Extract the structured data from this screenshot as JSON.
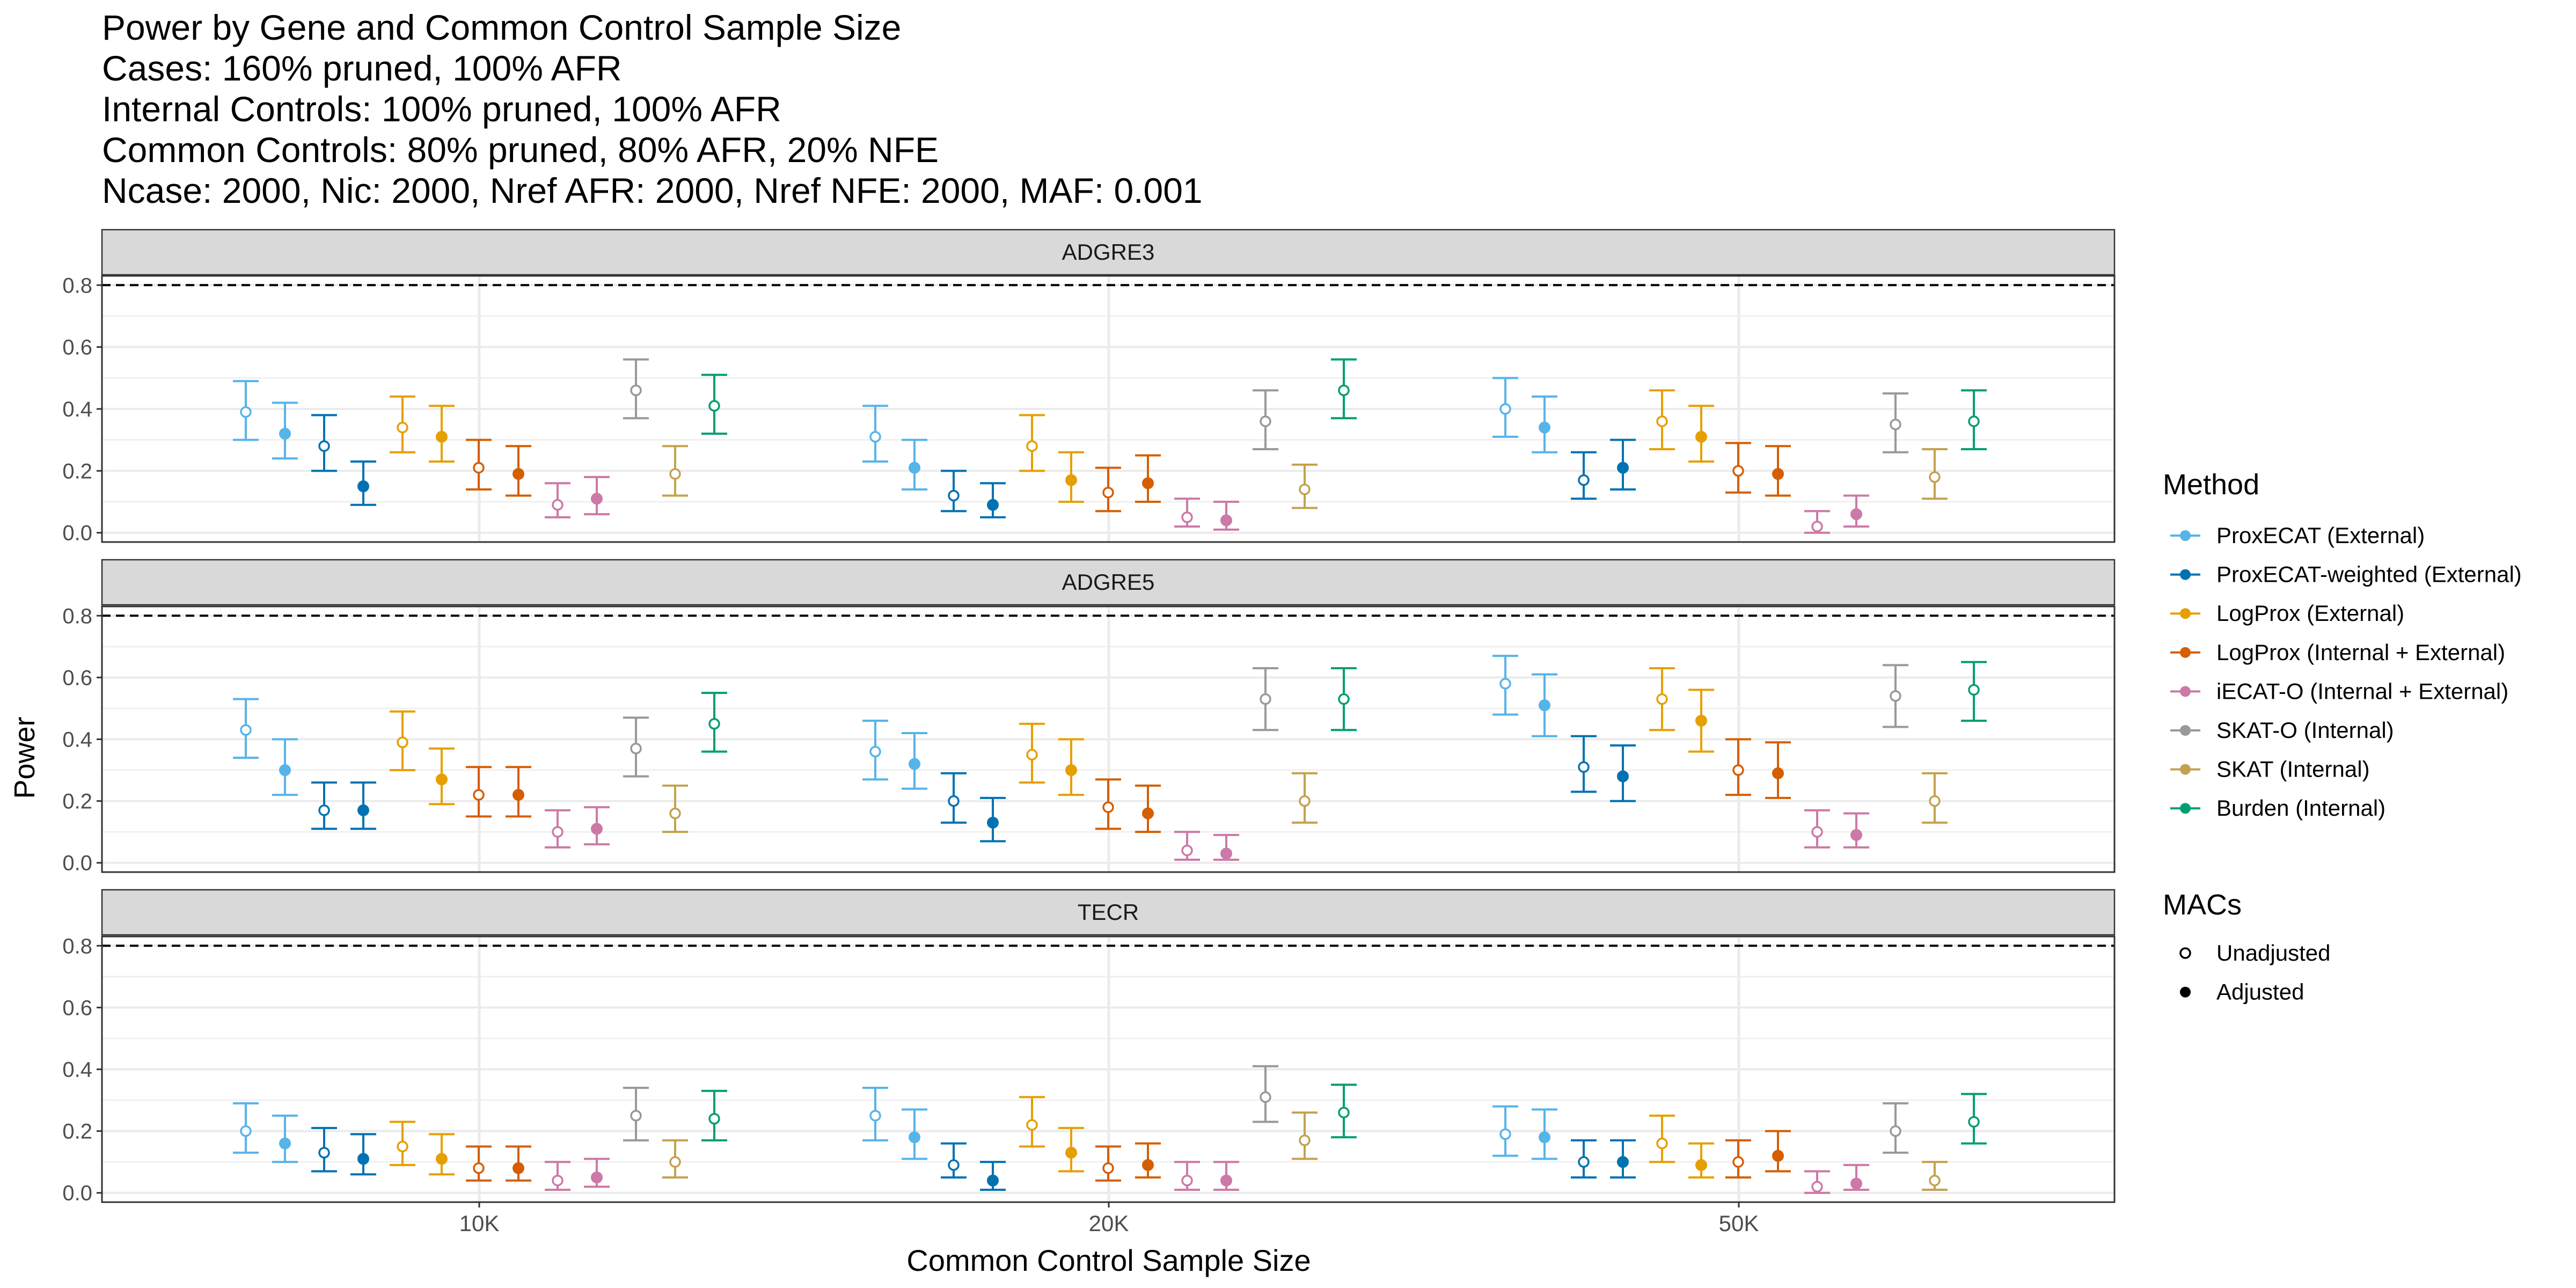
{
  "title_lines": [
    "Power by Gene and Common Control Sample Size",
    "Cases: 160% pruned, 100% AFR",
    "Internal Controls: 100% pruned, 100% AFR",
    "Common Controls: 80% pruned, 80% AFR, 20% NFE",
    "Ncase: 2000, Nic: 2000, Nref AFR: 2000, Nref NFE: 2000, MAF: 0.001"
  ],
  "chart_data": {
    "type": "scatter",
    "subtype": "dot-with-error-bars, faceted",
    "xlabel": "Common Control Sample Size",
    "ylabel": "Power",
    "ylim": [
      -0.03,
      0.83
    ],
    "y_ticks": [
      "0.0",
      "0.2",
      "0.4",
      "0.6",
      "0.8"
    ],
    "categories": [
      "10K",
      "20K",
      "50K"
    ],
    "reference_line": {
      "y": 0.8,
      "style": "dashed"
    },
    "grid": true,
    "legend_placement": "right",
    "legend_method_title": "Method",
    "legend_macs_title": "MACs",
    "methods": [
      {
        "name": "ProxECAT (External)",
        "color": "#56B4E9"
      },
      {
        "name": "ProxECAT-weighted (External)",
        "color": "#0072B2"
      },
      {
        "name": "LogProx (External)",
        "color": "#E69F00"
      },
      {
        "name": "LogProx (Internal + External)",
        "color": "#D55E00"
      },
      {
        "name": "iECAT-O (Internal + External)",
        "color": "#CC79A7"
      },
      {
        "name": "SKAT-O (Internal)",
        "color": "#999999"
      },
      {
        "name": "SKAT (Internal)",
        "color": "#C3A24F"
      },
      {
        "name": "Burden (Internal)",
        "color": "#009E73"
      }
    ],
    "macs": [
      {
        "name": "Unadjusted",
        "shape": "open-circle"
      },
      {
        "name": "Adjusted",
        "shape": "filled-circle"
      }
    ],
    "series_order": [
      {
        "method": 0,
        "mac": 0
      },
      {
        "method": 0,
        "mac": 1
      },
      {
        "method": 1,
        "mac": 0
      },
      {
        "method": 1,
        "mac": 1
      },
      {
        "method": 2,
        "mac": 0
      },
      {
        "method": 2,
        "mac": 1
      },
      {
        "method": 3,
        "mac": 0
      },
      {
        "method": 3,
        "mac": 1
      },
      {
        "method": 4,
        "mac": 0
      },
      {
        "method": 4,
        "mac": 1
      },
      {
        "method": 5,
        "mac": 0
      },
      {
        "method": 6,
        "mac": 0
      },
      {
        "method": 7,
        "mac": 0
      }
    ],
    "panels": [
      {
        "gene": "ADGRE3",
        "values": [
          [
            [
              0.39,
              0.3,
              0.49
            ],
            [
              0.32,
              0.24,
              0.42
            ],
            [
              0.28,
              0.2,
              0.38
            ],
            [
              0.15,
              0.09,
              0.23
            ],
            [
              0.34,
              0.26,
              0.44
            ],
            [
              0.31,
              0.23,
              0.41
            ],
            [
              0.21,
              0.14,
              0.3
            ],
            [
              0.19,
              0.12,
              0.28
            ],
            [
              0.09,
              0.05,
              0.16
            ],
            [
              0.11,
              0.06,
              0.18
            ],
            [
              0.46,
              0.37,
              0.56
            ],
            [
              0.19,
              0.12,
              0.28
            ],
            [
              0.41,
              0.32,
              0.51
            ]
          ],
          [
            [
              0.31,
              0.23,
              0.41
            ],
            [
              0.21,
              0.14,
              0.3
            ],
            [
              0.12,
              0.07,
              0.2
            ],
            [
              0.09,
              0.05,
              0.16
            ],
            [
              0.28,
              0.2,
              0.38
            ],
            [
              0.17,
              0.1,
              0.26
            ],
            [
              0.13,
              0.07,
              0.21
            ],
            [
              0.16,
              0.1,
              0.25
            ],
            [
              0.05,
              0.02,
              0.11
            ],
            [
              0.04,
              0.01,
              0.1
            ],
            [
              0.36,
              0.27,
              0.46
            ],
            [
              0.14,
              0.08,
              0.22
            ],
            [
              0.46,
              0.37,
              0.56
            ]
          ],
          [
            [
              0.4,
              0.31,
              0.5
            ],
            [
              0.34,
              0.26,
              0.44
            ],
            [
              0.17,
              0.11,
              0.26
            ],
            [
              0.21,
              0.14,
              0.3
            ],
            [
              0.36,
              0.27,
              0.46
            ],
            [
              0.31,
              0.23,
              0.41
            ],
            [
              0.2,
              0.13,
              0.29
            ],
            [
              0.19,
              0.12,
              0.28
            ],
            [
              0.02,
              0.0,
              0.07
            ],
            [
              0.06,
              0.02,
              0.12
            ],
            [
              0.35,
              0.26,
              0.45
            ],
            [
              0.18,
              0.11,
              0.27
            ],
            [
              0.36,
              0.27,
              0.46
            ]
          ]
        ]
      },
      {
        "gene": "ADGRE5",
        "values": [
          [
            [
              0.43,
              0.34,
              0.53
            ],
            [
              0.3,
              0.22,
              0.4
            ],
            [
              0.17,
              0.11,
              0.26
            ],
            [
              0.17,
              0.11,
              0.26
            ],
            [
              0.39,
              0.3,
              0.49
            ],
            [
              0.27,
              0.19,
              0.37
            ],
            [
              0.22,
              0.15,
              0.31
            ],
            [
              0.22,
              0.15,
              0.31
            ],
            [
              0.1,
              0.05,
              0.17
            ],
            [
              0.11,
              0.06,
              0.18
            ],
            [
              0.37,
              0.28,
              0.47
            ],
            [
              0.16,
              0.1,
              0.25
            ],
            [
              0.45,
              0.36,
              0.55
            ]
          ],
          [
            [
              0.36,
              0.27,
              0.46
            ],
            [
              0.32,
              0.24,
              0.42
            ],
            [
              0.2,
              0.13,
              0.29
            ],
            [
              0.13,
              0.07,
              0.21
            ],
            [
              0.35,
              0.26,
              0.45
            ],
            [
              0.3,
              0.22,
              0.4
            ],
            [
              0.18,
              0.11,
              0.27
            ],
            [
              0.16,
              0.1,
              0.25
            ],
            [
              0.04,
              0.01,
              0.1
            ],
            [
              0.03,
              0.01,
              0.09
            ],
            [
              0.53,
              0.43,
              0.63
            ],
            [
              0.2,
              0.13,
              0.29
            ],
            [
              0.53,
              0.43,
              0.63
            ]
          ],
          [
            [
              0.58,
              0.48,
              0.67
            ],
            [
              0.51,
              0.41,
              0.61
            ],
            [
              0.31,
              0.23,
              0.41
            ],
            [
              0.28,
              0.2,
              0.38
            ],
            [
              0.53,
              0.43,
              0.63
            ],
            [
              0.46,
              0.36,
              0.56
            ],
            [
              0.3,
              0.22,
              0.4
            ],
            [
              0.29,
              0.21,
              0.39
            ],
            [
              0.1,
              0.05,
              0.17
            ],
            [
              0.09,
              0.05,
              0.16
            ],
            [
              0.54,
              0.44,
              0.64
            ],
            [
              0.2,
              0.13,
              0.29
            ],
            [
              0.56,
              0.46,
              0.65
            ]
          ]
        ]
      },
      {
        "gene": "TECR",
        "values": [
          [
            [
              0.2,
              0.13,
              0.29
            ],
            [
              0.16,
              0.1,
              0.25
            ],
            [
              0.13,
              0.07,
              0.21
            ],
            [
              0.11,
              0.06,
              0.19
            ],
            [
              0.15,
              0.09,
              0.23
            ],
            [
              0.11,
              0.06,
              0.19
            ],
            [
              0.08,
              0.04,
              0.15
            ],
            [
              0.08,
              0.04,
              0.15
            ],
            [
              0.04,
              0.01,
              0.1
            ],
            [
              0.05,
              0.02,
              0.11
            ],
            [
              0.25,
              0.17,
              0.34
            ],
            [
              0.1,
              0.05,
              0.17
            ],
            [
              0.24,
              0.17,
              0.33
            ]
          ],
          [
            [
              0.25,
              0.17,
              0.34
            ],
            [
              0.18,
              0.11,
              0.27
            ],
            [
              0.09,
              0.05,
              0.16
            ],
            [
              0.04,
              0.01,
              0.1
            ],
            [
              0.22,
              0.15,
              0.31
            ],
            [
              0.13,
              0.07,
              0.21
            ],
            [
              0.08,
              0.04,
              0.15
            ],
            [
              0.09,
              0.05,
              0.16
            ],
            [
              0.04,
              0.01,
              0.1
            ],
            [
              0.04,
              0.01,
              0.1
            ],
            [
              0.31,
              0.23,
              0.41
            ],
            [
              0.17,
              0.11,
              0.26
            ],
            [
              0.26,
              0.18,
              0.35
            ]
          ],
          [
            [
              0.19,
              0.12,
              0.28
            ],
            [
              0.18,
              0.11,
              0.27
            ],
            [
              0.1,
              0.05,
              0.17
            ],
            [
              0.1,
              0.05,
              0.17
            ],
            [
              0.16,
              0.1,
              0.25
            ],
            [
              0.09,
              0.05,
              0.16
            ],
            [
              0.1,
              0.05,
              0.17
            ],
            [
              0.12,
              0.07,
              0.2
            ],
            [
              0.02,
              0.0,
              0.07
            ],
            [
              0.03,
              0.01,
              0.09
            ],
            [
              0.2,
              0.13,
              0.29
            ],
            [
              0.04,
              0.01,
              0.1
            ],
            [
              0.23,
              0.16,
              0.32
            ]
          ]
        ]
      }
    ]
  }
}
